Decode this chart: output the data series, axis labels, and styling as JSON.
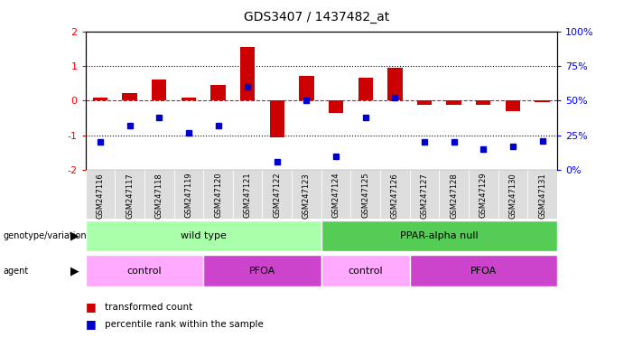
{
  "title": "GDS3407 / 1437482_at",
  "samples": [
    "GSM247116",
    "GSM247117",
    "GSM247118",
    "GSM247119",
    "GSM247120",
    "GSM247121",
    "GSM247122",
    "GSM247123",
    "GSM247124",
    "GSM247125",
    "GSM247126",
    "GSM247127",
    "GSM247128",
    "GSM247129",
    "GSM247130",
    "GSM247131"
  ],
  "bar_values": [
    0.08,
    0.22,
    0.6,
    0.08,
    0.45,
    1.55,
    -1.05,
    0.7,
    -0.35,
    0.65,
    0.95,
    -0.12,
    -0.12,
    -0.13,
    -0.3,
    -0.05
  ],
  "dot_percentile": [
    20,
    32,
    38,
    27,
    32,
    60,
    6,
    50,
    10,
    38,
    52,
    20,
    20,
    15,
    17,
    21
  ],
  "bar_color": "#cc0000",
  "dot_color": "#0000cc",
  "ylim": [
    -2,
    2
  ],
  "yticks_left": [
    -2,
    -1,
    0,
    1,
    2
  ],
  "yticks_right_vals": [
    -2,
    -1,
    0,
    1,
    2
  ],
  "yticks_right_labels": [
    "0%",
    "25%",
    "50%",
    "75%",
    "100%"
  ],
  "dotted_lines": [
    -1,
    1
  ],
  "genotype_groups": [
    {
      "label": "wild type",
      "start": 0,
      "end": 8,
      "color": "#aaffaa"
    },
    {
      "label": "PPAR-alpha null",
      "start": 8,
      "end": 16,
      "color": "#55cc55"
    }
  ],
  "agent_groups": [
    {
      "label": "control",
      "start": 0,
      "end": 4,
      "color": "#ffaaff"
    },
    {
      "label": "PFOA",
      "start": 4,
      "end": 8,
      "color": "#dd44dd"
    },
    {
      "label": "control",
      "start": 8,
      "end": 11,
      "color": "#ffaaff"
    },
    {
      "label": "PFOA",
      "start": 11,
      "end": 16,
      "color": "#dd44dd"
    }
  ],
  "legend_items": [
    {
      "label": "transformed count",
      "color": "#cc0000"
    },
    {
      "label": "percentile rank within the sample",
      "color": "#0000cc"
    }
  ],
  "background_color": "#ffffff",
  "sample_box_color": "#dddddd"
}
